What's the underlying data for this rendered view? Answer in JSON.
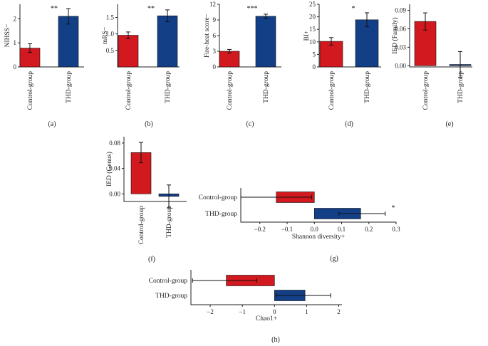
{
  "colors": {
    "control": "#d1191f",
    "thd": "#133f86"
  },
  "chart_data": [
    {
      "type": "bar",
      "panel": "(a)",
      "ylabel": "NIHSS−",
      "categories": [
        "Control-group",
        "THD-group"
      ],
      "values": [
        0.78,
        2.1
      ],
      "errors": [
        0.18,
        0.32
      ],
      "ylim": [
        0,
        2.6
      ],
      "yticks": [
        0,
        1,
        2
      ],
      "tick_labels": [
        "0",
        "1",
        "2"
      ],
      "significance": "**"
    },
    {
      "type": "bar",
      "panel": "(b)",
      "ylabel": "mRS−",
      "categories": [
        "Control-group",
        "THD-group"
      ],
      "values": [
        0.96,
        1.55
      ],
      "errors": [
        0.1,
        0.18
      ],
      "ylim": [
        0,
        1.9
      ],
      "yticks": [
        0.5,
        1.0,
        1.5
      ],
      "tick_labels": [
        "0.5",
        "1.0",
        "1.5"
      ],
      "significance": "**"
    },
    {
      "type": "bar",
      "panel": "(c)",
      "ylabel": "Fire-heat score−",
      "categories": [
        "Control-group",
        "THD-group"
      ],
      "values": [
        3.0,
        9.7
      ],
      "errors": [
        0.35,
        0.4
      ],
      "ylim": [
        0,
        12
      ],
      "yticks": [
        0,
        3,
        6,
        9,
        12
      ],
      "tick_labels": [
        "0",
        "3",
        "6",
        "9",
        "12"
      ],
      "significance": "***"
    },
    {
      "type": "bar",
      "panel": "(d)",
      "ylabel": "BI+",
      "categories": [
        "Control-group",
        "THD-group"
      ],
      "values": [
        10.2,
        18.8
      ],
      "errors": [
        1.5,
        2.8
      ],
      "ylim": [
        0,
        25
      ],
      "yticks": [
        0,
        5,
        10,
        15,
        20,
        25
      ],
      "tick_labels": [
        "0",
        "5",
        "10",
        "15",
        "20",
        "25"
      ],
      "significance": "*"
    },
    {
      "type": "bar",
      "panel": "(e)",
      "ylabel": "IED (Family)",
      "categories": [
        "Control-group",
        "THD-group"
      ],
      "values": [
        0.072,
        0.002
      ],
      "errors": [
        0.014,
        0.021
      ],
      "ylim": [
        -0.002,
        0.1
      ],
      "yticks": [
        0.0,
        0.03,
        0.06,
        0.09
      ],
      "tick_labels": [
        "0.00",
        "0.03",
        "0.06",
        "0.09"
      ],
      "significance": ""
    },
    {
      "type": "bar",
      "panel": "(f)",
      "ylabel": "IED (Genus)",
      "categories": [
        "Control-group",
        "THD-group"
      ],
      "values": [
        0.065,
        -0.004
      ],
      "errors": [
        0.016,
        0.018
      ],
      "ylim": [
        -0.012,
        0.09
      ],
      "yticks": [
        0.0,
        0.04,
        0.08
      ],
      "tick_labels": [
        "0.00",
        "0.04",
        "0.08"
      ],
      "significance": ""
    },
    {
      "type": "bar",
      "orientation": "horizontal",
      "panel": "(g)",
      "xlabel": "Shannon diversity+",
      "categories": [
        "Control-group",
        "THD-group"
      ],
      "values": [
        -0.14,
        0.17
      ],
      "error_low": [
        -0.27,
        0.09
      ],
      "error_high": [
        -0.01,
        0.26
      ],
      "xlim": [
        -0.27,
        0.3
      ],
      "xticks": [
        -0.2,
        -0.1,
        0.0,
        0.1,
        0.2,
        0.3
      ],
      "tick_labels": [
        "−0.2",
        "−0.1",
        "0.0",
        "0.1",
        "0.2",
        "0.3"
      ],
      "significance": "*"
    },
    {
      "type": "bar",
      "orientation": "horizontal",
      "panel": "(h)",
      "xlabel": "Chao1+",
      "categories": [
        "Control-group",
        "THD-group"
      ],
      "values": [
        -1.5,
        0.95
      ],
      "error_low": [
        -2.55,
        0.05
      ],
      "error_high": [
        -0.55,
        1.75
      ],
      "xlim": [
        -2.6,
        2.1
      ],
      "xticks": [
        -2,
        -1,
        0,
        1,
        2
      ],
      "tick_labels": [
        "−2",
        "−1",
        "0",
        "1",
        "2"
      ],
      "significance": ""
    }
  ]
}
